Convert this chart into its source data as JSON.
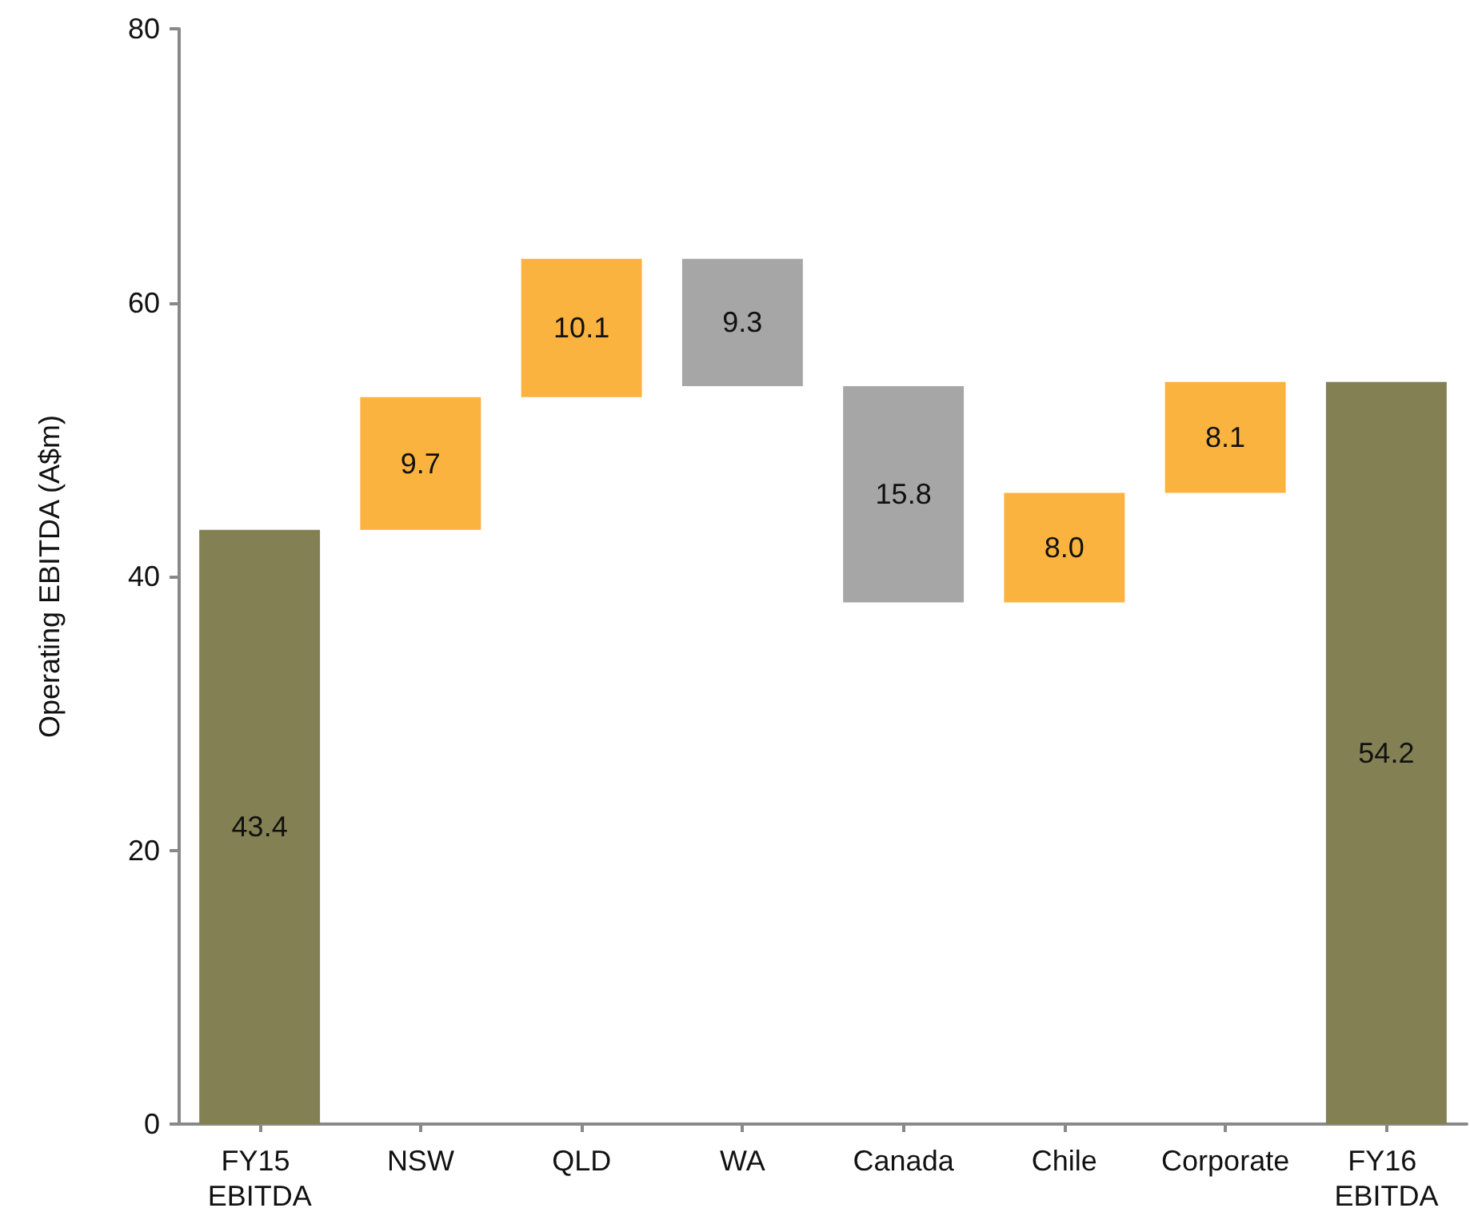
{
  "chart_data": {
    "type": "bar",
    "ylabel": "Operating EBITDA (A$m)",
    "categories": [
      "FY15 EBITDA",
      "NSW",
      "QLD",
      "WA",
      "Canada",
      "Chile",
      "Corporate",
      "FY16 EBITDA"
    ],
    "values": [
      43.4,
      9.7,
      10.1,
      9.3,
      15.8,
      8.0,
      8.1,
      54.2
    ],
    "base": [
      0,
      43.4,
      53.1,
      53.9,
      38.1,
      38.1,
      46.1,
      0
    ],
    "colors": [
      "#838053",
      "#fbb33f",
      "#fbb33f",
      "#a6a6a6",
      "#a6a6a6",
      "#fbb33f",
      "#fbb33f",
      "#838053"
    ],
    "value_labels": [
      "43.4",
      "9.7",
      "10.1",
      "9.3",
      "15.8",
      "8.0",
      "8.1",
      "54.2"
    ],
    "ylim": [
      0,
      80
    ],
    "yticks": [
      0,
      20,
      40,
      60,
      80
    ]
  }
}
